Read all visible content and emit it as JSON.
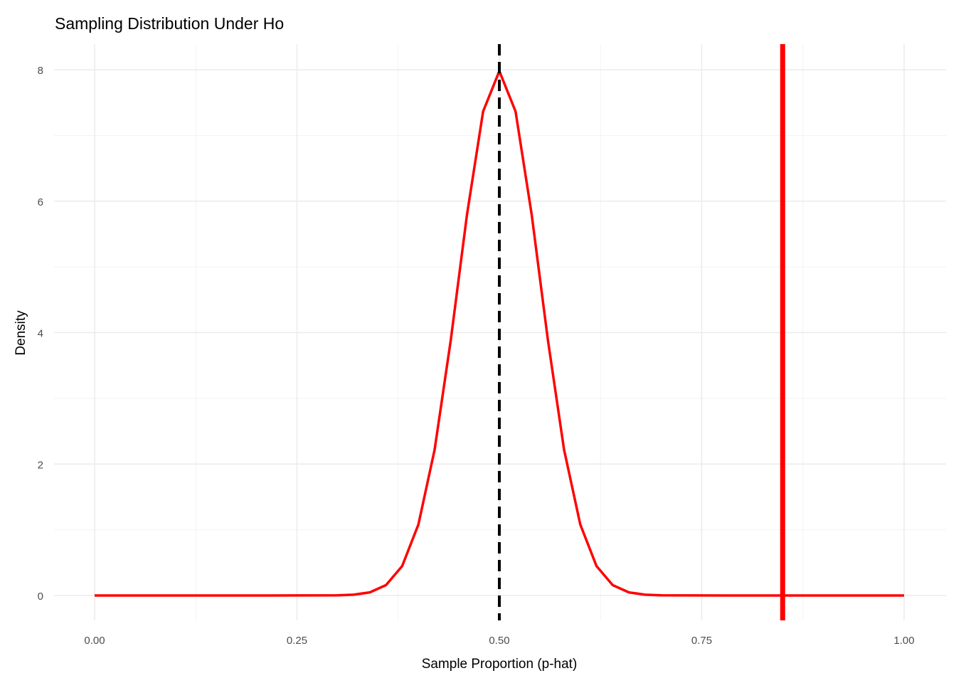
{
  "chart_data": {
    "type": "line",
    "title": "Sampling Distribution Under Ho",
    "xlabel": "Sample Proportion (p-hat)",
    "ylabel": "Density",
    "xlim": [
      0,
      1
    ],
    "ylim": [
      0,
      8
    ],
    "x_ticks": [
      0,
      0.25,
      0.5,
      0.75,
      1
    ],
    "x_tick_labels": [
      "0.00",
      "0.25",
      "0.50",
      "0.75",
      "1.00"
    ],
    "y_ticks": [
      0,
      2,
      4,
      6,
      8
    ],
    "y_tick_labels": [
      "0",
      "2",
      "4",
      "6",
      "8"
    ],
    "grid": true,
    "series": [
      {
        "name": "density",
        "color": "#ff0000",
        "x": [
          0,
          0.1,
          0.2,
          0.3,
          0.32,
          0.34,
          0.36,
          0.38,
          0.4,
          0.42,
          0.44,
          0.46,
          0.48,
          0.5,
          0.52,
          0.54,
          0.56,
          0.58,
          0.6,
          0.62,
          0.64,
          0.66,
          0.68,
          0.7,
          0.8,
          0.9,
          1.0
        ],
        "y": [
          0,
          0,
          0,
          0.0027,
          0.0122,
          0.0477,
          0.158,
          0.448,
          1.08,
          2.218,
          3.884,
          5.794,
          7.366,
          7.979,
          7.366,
          5.794,
          3.884,
          2.218,
          1.08,
          0.448,
          0.158,
          0.0477,
          0.0122,
          0.0027,
          0,
          0,
          0
        ]
      }
    ],
    "reference_lines": [
      {
        "name": "null-mean",
        "x": 0.5,
        "color": "#000000",
        "style": "dashed"
      },
      {
        "name": "observed-proportion",
        "x": 0.85,
        "color": "#ff0000",
        "style": "solid"
      }
    ]
  }
}
